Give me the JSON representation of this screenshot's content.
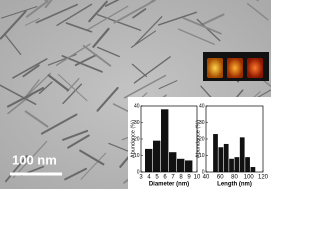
{
  "scale_bar_label": "100 nm",
  "chart_data": [
    {
      "type": "histogram",
      "xlabel": "Diameter (nm)",
      "ylabel": "Abundance (%)",
      "bins": [
        3.5,
        4.5,
        5.5,
        6.5,
        7.5,
        8.5,
        9.5
      ],
      "values": [
        14,
        19,
        38,
        12,
        8,
        7
      ],
      "color": "#111111",
      "xlim": [
        3,
        10
      ],
      "ylim": [
        0,
        40
      ],
      "xticks": [
        3,
        4,
        5,
        6,
        7,
        8,
        9,
        10
      ],
      "yticks": [
        0,
        10,
        20,
        30,
        40
      ]
    },
    {
      "type": "histogram",
      "xlabel": "Length (nm)",
      "ylabel": "Abundance (%)",
      "bins": [
        50,
        57.5,
        65,
        72.5,
        80,
        87.5,
        95,
        102.5,
        110
      ],
      "values": [
        23,
        15,
        17,
        8,
        9,
        21,
        9,
        3
      ],
      "color": "#111111",
      "xlim": [
        40,
        120
      ],
      "ylim": [
        0,
        40
      ],
      "xticks": [
        40,
        60,
        80,
        100,
        120
      ],
      "yticks": [
        0,
        10,
        20,
        30,
        40
      ]
    }
  ]
}
